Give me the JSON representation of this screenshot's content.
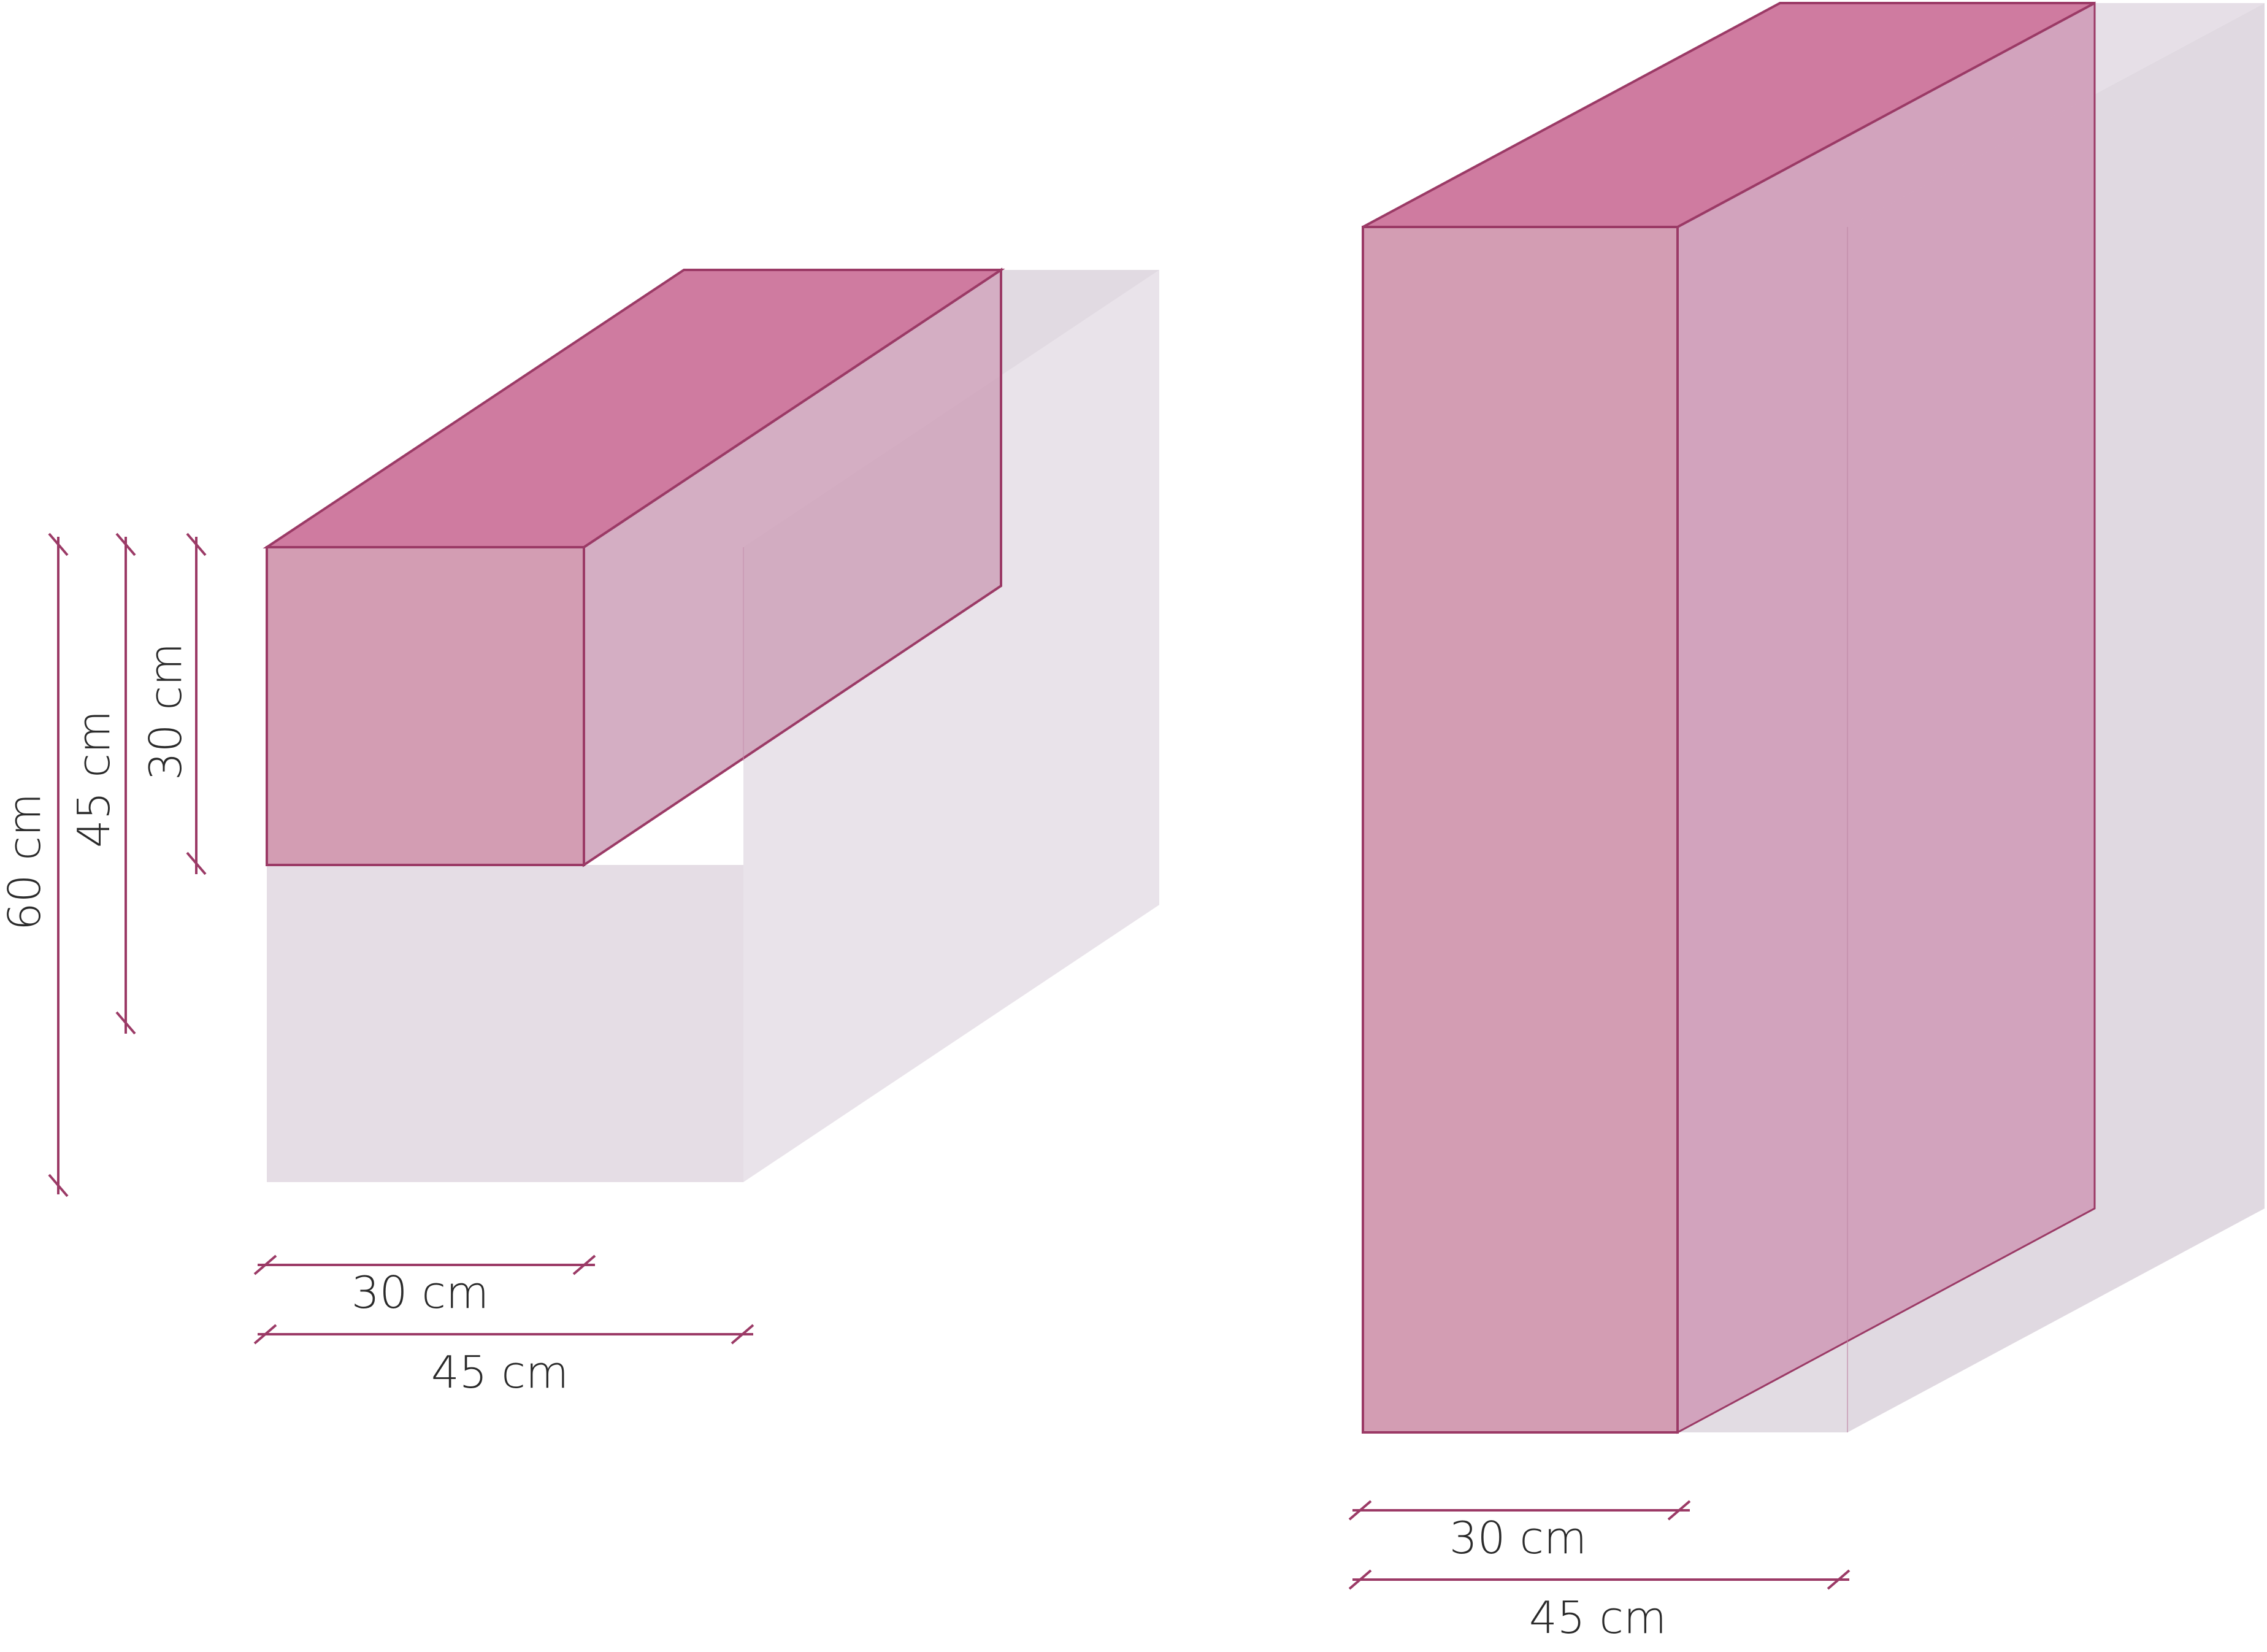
{
  "colors": {
    "outline": "#9b3a66",
    "top_face": "#cf7ba0",
    "front_face": "#d39db3",
    "side_face": "#cfa5bc",
    "ghost_front": "#e5dde5",
    "ghost_side": "#e9e3ea",
    "ghost_back": "#dfd8e0"
  },
  "left_block": {
    "height_labels": [
      "60 cm",
      "45 cm",
      "30 cm"
    ],
    "width_labels": [
      "30 cm",
      "45 cm"
    ]
  },
  "right_block": {
    "width_labels": [
      "30 cm",
      "45 cm"
    ]
  }
}
